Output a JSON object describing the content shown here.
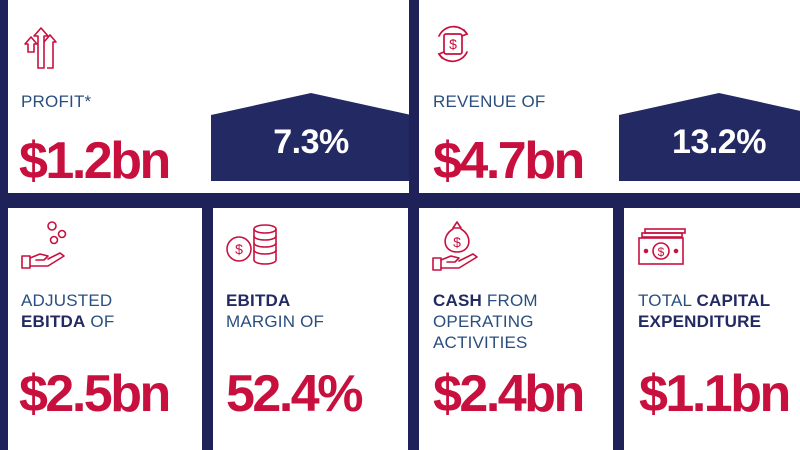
{
  "profit": {
    "label": "PROFIT*",
    "value": "$1.2bn",
    "change": "7.3%",
    "icon": "arrows-up-icon"
  },
  "revenue": {
    "label": "REVENUE OF",
    "value": "$4.7bn",
    "change": "13.2%",
    "icon": "dollar-cycle-icon"
  },
  "adjusted_ebitda": {
    "label_line1": "ADJUSTED",
    "label_bold": "EBITDA",
    "label_rest": " OF",
    "value": "$2.5bn",
    "icon": "hand-coins-icon"
  },
  "ebitda_margin": {
    "label_bold": "EBITDA",
    "label_line2": "MARGIN OF",
    "value": "52.4%",
    "icon": "coin-stack-icon"
  },
  "cash": {
    "label_bold": "CASH",
    "label_rest": " FROM",
    "label_line2": "OPERATING",
    "label_line3": "ACTIVITIES",
    "value": "$2.4bn",
    "icon": "hand-money-bag-icon"
  },
  "capex": {
    "label_pre": "TOTAL ",
    "label_bold1": "CAPITAL",
    "label_bold2": "EXPENDITURE",
    "value": "$1.1bn",
    "icon": "banknotes-icon"
  },
  "colors": {
    "background": "#1f2258",
    "card": "#ffffff",
    "accent_red": "#c8103e",
    "label_blue": "#2a4f7e",
    "navy": "#232a63"
  }
}
